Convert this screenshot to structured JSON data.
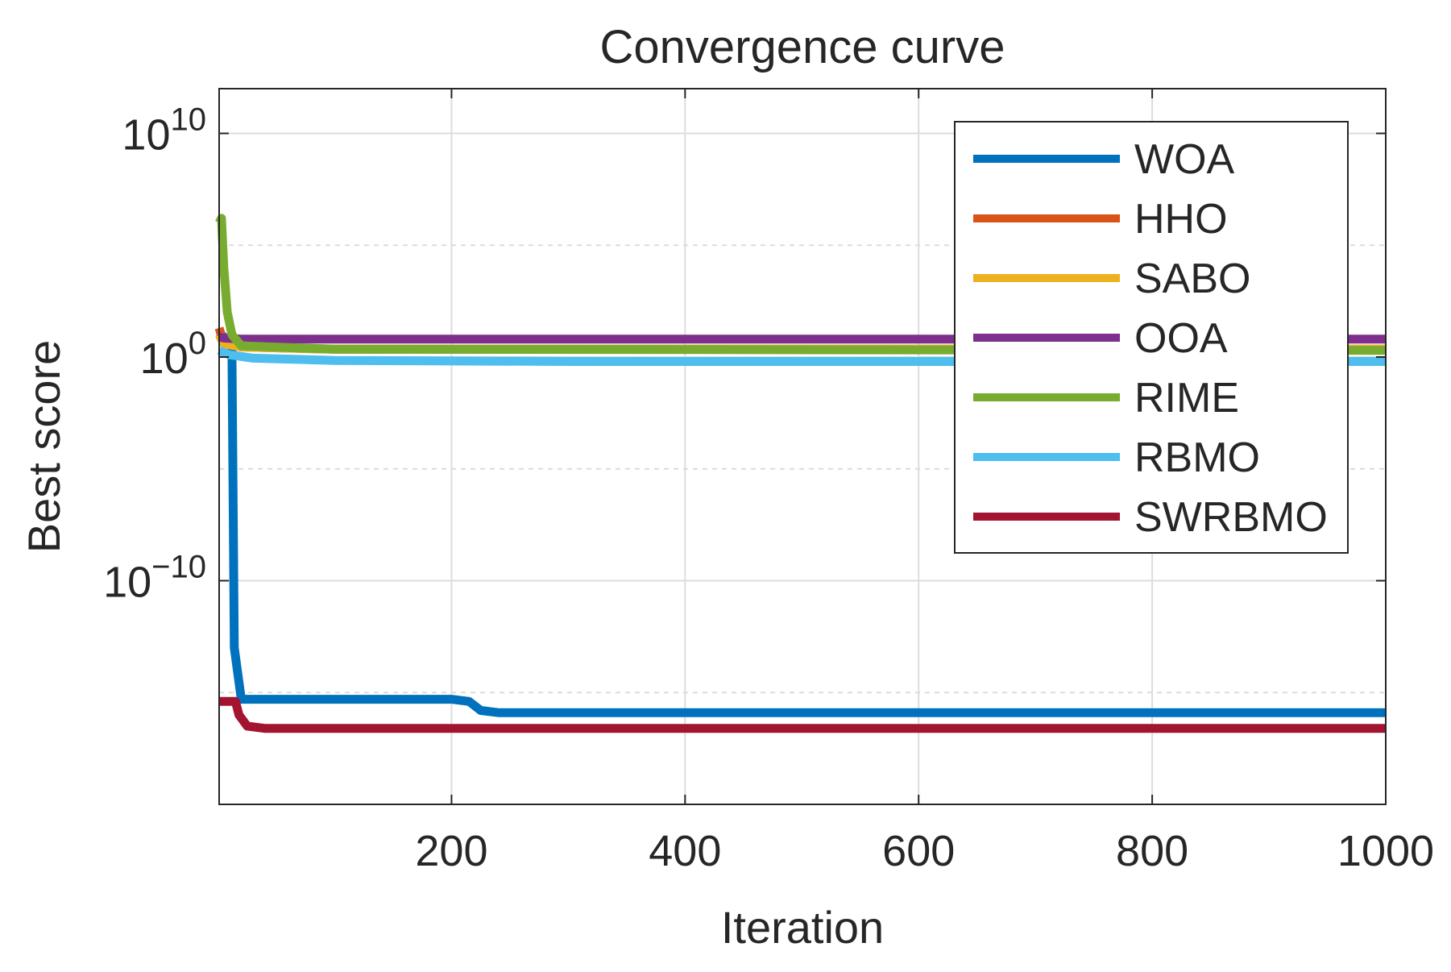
{
  "chart_data": {
    "type": "line",
    "title": "Convergence curve",
    "xlabel": "Iteration",
    "ylabel": "Best score",
    "xlim": [
      1,
      1000
    ],
    "ylim_exponent": [
      -20,
      12
    ],
    "yscale": "log",
    "grid": true,
    "legend_position": "top-right",
    "x_ticks": [
      200,
      400,
      600,
      800,
      1000
    ],
    "y_ticks": [
      {
        "exponent": -10,
        "base": "10",
        "sup": "−10"
      },
      {
        "exponent": 0,
        "base": "10",
        "sup": "0"
      },
      {
        "exponent": 10,
        "base": "10",
        "sup": "10"
      }
    ],
    "minor_grid_exponents": [
      -15,
      -5,
      5
    ],
    "series": [
      {
        "name": "WOA",
        "color": "#0072BD",
        "x": [
          1,
          5,
          10,
          12,
          14,
          20,
          100,
          200,
          215,
          225,
          240,
          300,
          1000
        ],
        "log10_y": [
          1.1,
          0.9,
          0.7,
          0.3,
          -13.0,
          -15.3,
          -15.3,
          -15.3,
          -15.4,
          -15.8,
          -15.9,
          -15.9,
          -15.9
        ]
      },
      {
        "name": "HHO",
        "color": "#D95319",
        "x": [
          1,
          5,
          20,
          100,
          1000
        ],
        "log10_y": [
          1.3,
          0.6,
          0.45,
          0.35,
          0.35
        ]
      },
      {
        "name": "SABO",
        "color": "#EDB120",
        "x": [
          1,
          5,
          20,
          100,
          1000
        ],
        "log10_y": [
          1.0,
          0.6,
          0.45,
          0.35,
          0.35
        ]
      },
      {
        "name": "OOA",
        "color": "#7E2F8E",
        "x": [
          1,
          5,
          20,
          1000
        ],
        "log10_y": [
          0.9,
          0.85,
          0.8,
          0.8
        ]
      },
      {
        "name": "RIME",
        "color": "#77AC30",
        "x": [
          1,
          3,
          5,
          8,
          12,
          20,
          100,
          1000
        ],
        "log10_y": [
          6.0,
          6.2,
          4.0,
          2.0,
          1.0,
          0.5,
          0.35,
          0.3
        ]
      },
      {
        "name": "RBMO",
        "color": "#4DBEEE",
        "x": [
          1,
          5,
          10,
          30,
          100,
          300,
          1000
        ],
        "log10_y": [
          0.3,
          0.2,
          0.1,
          -0.05,
          -0.15,
          -0.2,
          -0.2
        ]
      },
      {
        "name": "SWRBMO",
        "color": "#A2142F",
        "x": [
          1,
          15,
          18,
          25,
          40,
          1000
        ],
        "log10_y": [
          -15.4,
          -15.4,
          -16.0,
          -16.5,
          -16.6,
          -16.6
        ]
      }
    ]
  }
}
